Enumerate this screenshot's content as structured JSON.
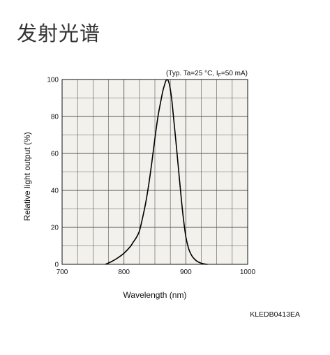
{
  "page": {
    "title": "发射光谱",
    "figure_id": "KLEDB0413EA"
  },
  "colors": {
    "plot_background": "#f2f1ec",
    "grid": "#555555",
    "curve": "#000000"
  },
  "chart_data": {
    "type": "line",
    "title": "",
    "condition_note": "(Typ. Ta=25 °C, I",
    "condition_sub": "F",
    "condition_tail": "=50 mA)",
    "xlabel": "Wavelength (nm)",
    "ylabel": "Relative light output (%)",
    "xlim": [
      700,
      1000
    ],
    "ylim": [
      0,
      100
    ],
    "xticks": [
      700,
      800,
      900,
      1000
    ],
    "yticks": [
      0,
      20,
      40,
      60,
      80,
      100
    ],
    "grid": true,
    "minor_grid_x": 25,
    "minor_grid_y": 10,
    "series": [
      {
        "x": [
          770,
          780,
          790,
          800,
          810,
          815,
          820,
          825,
          830,
          835,
          840,
          845,
          850,
          855,
          860,
          863,
          866,
          868,
          870,
          872,
          874,
          877,
          880,
          885,
          890,
          895,
          900,
          905,
          910,
          915,
          920,
          925,
          930,
          935
        ],
        "y": [
          0,
          1.5,
          3.5,
          6,
          9.5,
          12,
          14.5,
          18,
          25,
          33,
          43,
          55,
          68,
          80,
          89,
          94,
          97.5,
          99.5,
          100,
          99,
          96.5,
          90,
          80,
          63,
          45,
          28,
          15,
          8,
          4.5,
          2.5,
          1.3,
          0.6,
          0.2,
          0
        ]
      }
    ]
  }
}
